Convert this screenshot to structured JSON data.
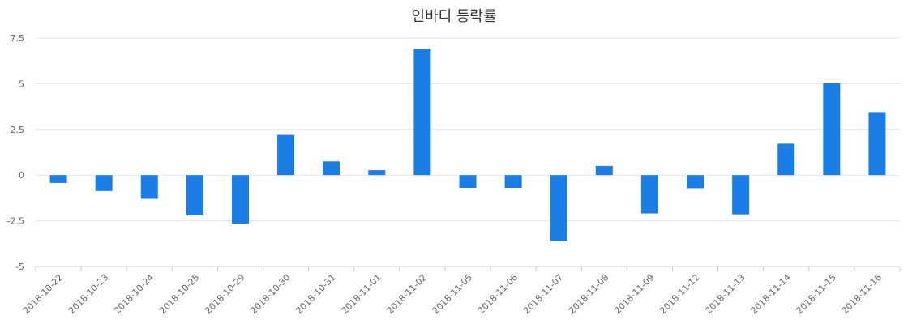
{
  "chart_data": {
    "type": "bar",
    "title": "인바디 등락률",
    "xlabel": "",
    "ylabel": "",
    "ylim": [
      -5,
      7.5
    ],
    "yticks": [
      "7.5",
      "5",
      "2.5",
      "0",
      "-2.5",
      "-5"
    ],
    "ytick_values": [
      7.5,
      5,
      2.5,
      0,
      -2.5,
      -5
    ],
    "grid": true,
    "categories": [
      "2018-10-22",
      "2018-10-23",
      "2018-10-24",
      "2018-10-25",
      "2018-10-29",
      "2018-10-30",
      "2018-10-31",
      "2018-11-01",
      "2018-11-02",
      "2018-11-05",
      "2018-11-06",
      "2018-11-07",
      "2018-11-08",
      "2018-11-09",
      "2018-11-12",
      "2018-11-13",
      "2018-11-14",
      "2018-11-15",
      "2018-11-16"
    ],
    "values": [
      -0.43,
      -0.87,
      -1.3,
      -2.2,
      -2.65,
      2.2,
      0.75,
      0.27,
      6.9,
      -0.7,
      -0.7,
      -3.6,
      0.5,
      -2.1,
      -0.72,
      -2.15,
      1.72,
      5.02,
      3.45
    ],
    "colors": {
      "bar": "#1a7ee6",
      "grid": "#e6e6e6",
      "axis": "#cccccc"
    }
  }
}
